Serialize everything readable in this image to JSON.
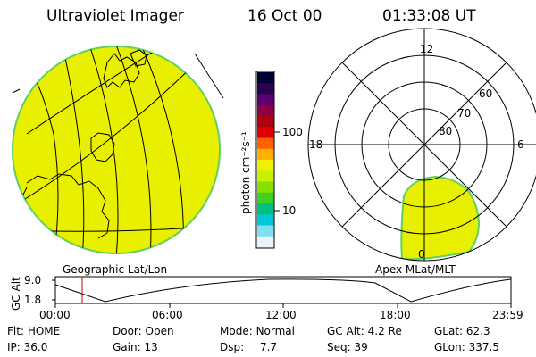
{
  "header": {
    "title": "Ultraviolet Imager",
    "date": "16 Oct 00",
    "time": "01:33:08 UT"
  },
  "geo_panel": {
    "label": "Geographic Lat/Lon"
  },
  "colorbar": {
    "unit_label": "photon cm⁻²s⁻¹",
    "tick_labels": [
      "100",
      "10"
    ],
    "colors": [
      "#000030",
      "#2a0050",
      "#5a0070",
      "#8a0040",
      "#b00010",
      "#e00000",
      "#ff6000",
      "#ffb000",
      "#f0f000",
      "#c8f000",
      "#88e000",
      "#40d020",
      "#00c080",
      "#00c8d8",
      "#80e0f0",
      "#e8f4f8"
    ]
  },
  "polar_panel": {
    "label": "Apex MLat/MLT",
    "mlt_labels": {
      "top": "12",
      "left": "18",
      "right": "6",
      "bottom": "0"
    },
    "lat_labels": [
      "60",
      "70",
      "80"
    ]
  },
  "altitude_plot": {
    "ylabel": "GC Alt",
    "ytick_labels": [
      "9.0",
      "1.8"
    ],
    "xtick_labels": [
      "00:00",
      "06:00",
      "12:00",
      "18:00",
      "23:59"
    ]
  },
  "status": [
    [
      {
        "key": "Flt:",
        "value": "HOME"
      },
      {
        "key": "Door:",
        "value": "Open"
      },
      {
        "key": "Mode:",
        "value": "Normal"
      },
      {
        "key": "GC Alt:",
        "value": "4.2 Re"
      },
      {
        "key": "GLat:",
        "value": "62.3"
      }
    ],
    [
      {
        "key": "IP:",
        "value": "36.0"
      },
      {
        "key": "Gain:",
        "value": "13"
      },
      {
        "key": "Dsp:",
        "value": "7.7"
      },
      {
        "key": "Seq:",
        "value": "39"
      },
      {
        "key": "GLon:",
        "value": "337.5"
      }
    ]
  ],
  "colors": {
    "fill": "#e8f000",
    "fill_edge": "#60d060",
    "line": "#000000",
    "marker": "#d00000"
  }
}
